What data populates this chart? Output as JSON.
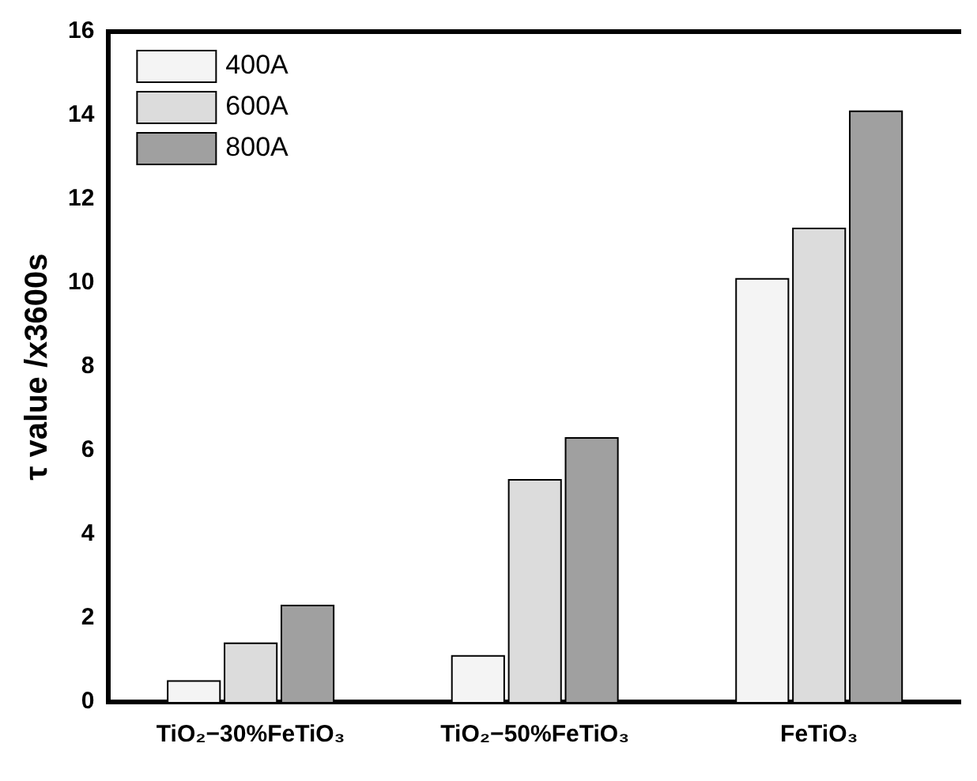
{
  "chart_data": {
    "type": "bar",
    "ylabel": "τ value /x3600s",
    "categories": [
      "TiO₂−30%FeTiO₃",
      "TiO₂−50%FeTiO₃",
      "FeTiO₃"
    ],
    "series": [
      {
        "name": "400A",
        "color": "#f4f4f4",
        "values": [
          0.5,
          1.1,
          10.1
        ]
      },
      {
        "name": "600A",
        "color": "#dcdcdc",
        "values": [
          1.4,
          5.3,
          11.3
        ]
      },
      {
        "name": "800A",
        "color": "#a0a0a0",
        "values": [
          2.3,
          6.3,
          14.1
        ]
      }
    ],
    "ylim": [
      0,
      16
    ],
    "yticks": [
      0,
      2,
      4,
      6,
      8,
      10,
      12,
      14,
      16
    ],
    "grid": false,
    "legend": "top left"
  }
}
